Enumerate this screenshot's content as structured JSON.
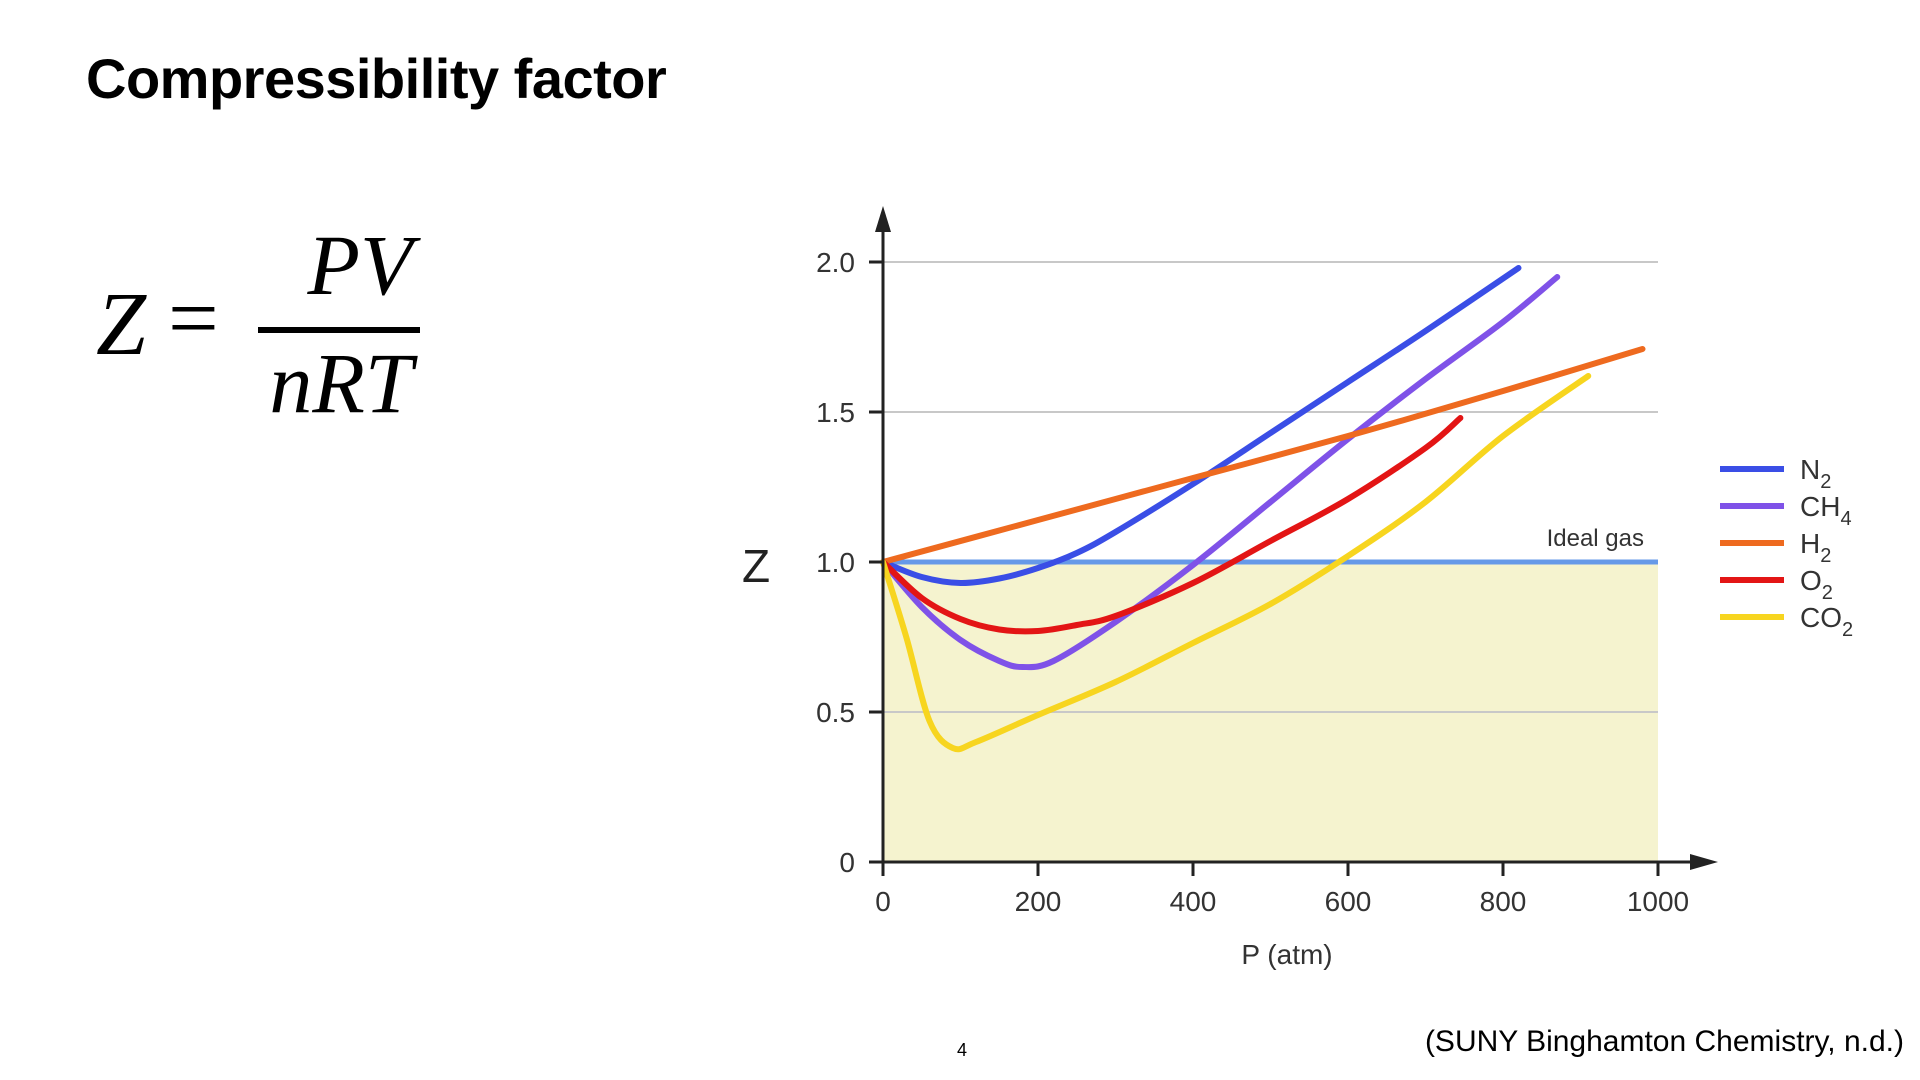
{
  "slide": {
    "title": "Compressibility factor",
    "formula": {
      "lhs": "Z",
      "equals": "=",
      "numerator": "PV",
      "denominator": "nRT"
    },
    "page_number": "4",
    "citation": "(SUNY Binghamton Chemistry, n.d.)"
  },
  "chart_data": {
    "type": "line",
    "title": "",
    "xlabel": "P (atm)",
    "ylabel": "Z",
    "xlim": [
      0,
      1000
    ],
    "ylim": [
      0,
      2.0
    ],
    "x_ticks": [
      0,
      200,
      400,
      600,
      800,
      1000
    ],
    "x_tick_labels": [
      "0",
      "200",
      "400",
      "600",
      "800",
      "1000"
    ],
    "y_ticks": [
      0,
      0.5,
      1.0,
      1.5,
      2.0
    ],
    "y_tick_labels": [
      "0",
      "0.5",
      "1.0",
      "1.5",
      "2.0"
    ],
    "grid": "horizontal",
    "shaded_region": {
      "y_from": 0,
      "y_to": 1.0,
      "color": "#f5f3cf"
    },
    "ideal_gas": {
      "label": "Ideal gas",
      "y": 1.0,
      "color": "#6699e8"
    },
    "legend_position": "right",
    "series": [
      {
        "name": "N2",
        "formula": "N",
        "subscript": "2",
        "color": "#3a4ee6",
        "points": [
          [
            0,
            1.0
          ],
          [
            50,
            0.95
          ],
          [
            100,
            0.93
          ],
          [
            150,
            0.945
          ],
          [
            200,
            0.98
          ],
          [
            250,
            1.03
          ],
          [
            300,
            1.1
          ],
          [
            400,
            1.26
          ],
          [
            500,
            1.43
          ],
          [
            600,
            1.6
          ],
          [
            700,
            1.77
          ],
          [
            820,
            1.98
          ]
        ]
      },
      {
        "name": "CH4",
        "formula": "CH",
        "subscript": "4",
        "color": "#7f52e8",
        "points": [
          [
            0,
            1.0
          ],
          [
            50,
            0.85
          ],
          [
            100,
            0.74
          ],
          [
            150,
            0.67
          ],
          [
            180,
            0.65
          ],
          [
            220,
            0.67
          ],
          [
            300,
            0.8
          ],
          [
            400,
            0.99
          ],
          [
            500,
            1.2
          ],
          [
            600,
            1.41
          ],
          [
            700,
            1.61
          ],
          [
            800,
            1.8
          ],
          [
            870,
            1.95
          ]
        ]
      },
      {
        "name": "H2",
        "formula": "H",
        "subscript": "2",
        "color": "#ee6a1f",
        "points": [
          [
            0,
            1.0
          ],
          [
            200,
            1.14
          ],
          [
            400,
            1.28
          ],
          [
            600,
            1.42
          ],
          [
            800,
            1.57
          ],
          [
            980,
            1.71
          ]
        ]
      },
      {
        "name": "O2",
        "formula": "O",
        "subscript": "2",
        "color": "#e31515",
        "points": [
          [
            0,
            1.0
          ],
          [
            50,
            0.88
          ],
          [
            100,
            0.81
          ],
          [
            150,
            0.775
          ],
          [
            200,
            0.77
          ],
          [
            250,
            0.79
          ],
          [
            300,
            0.82
          ],
          [
            400,
            0.93
          ],
          [
            500,
            1.07
          ],
          [
            600,
            1.21
          ],
          [
            700,
            1.38
          ],
          [
            745,
            1.48
          ]
        ]
      },
      {
        "name": "CO2",
        "formula": "CO",
        "subscript": "2",
        "color": "#f7d51f",
        "points": [
          [
            0,
            1.0
          ],
          [
            30,
            0.75
          ],
          [
            60,
            0.47
          ],
          [
            90,
            0.38
          ],
          [
            120,
            0.4
          ],
          [
            200,
            0.49
          ],
          [
            300,
            0.6
          ],
          [
            400,
            0.73
          ],
          [
            500,
            0.86
          ],
          [
            600,
            1.02
          ],
          [
            700,
            1.2
          ],
          [
            800,
            1.42
          ],
          [
            910,
            1.62
          ]
        ]
      }
    ]
  }
}
